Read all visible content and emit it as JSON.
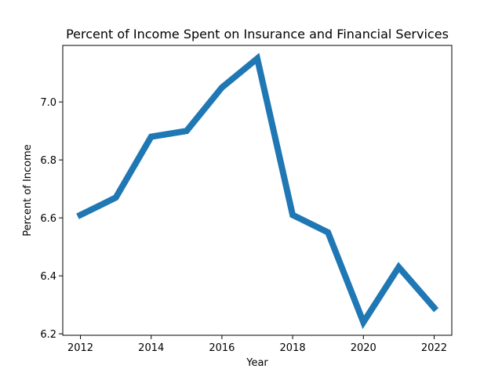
{
  "chart_data": {
    "type": "line",
    "title": "Percent of Income Spent on Insurance and Financial Services",
    "xlabel": "Year",
    "ylabel": "Percent of Income",
    "x": [
      2012,
      2013,
      2014,
      2015,
      2016,
      2017,
      2018,
      2019,
      2020,
      2021,
      2022
    ],
    "series": [
      {
        "values": [
          6.61,
          6.67,
          6.88,
          6.9,
          7.05,
          7.15,
          6.61,
          6.55,
          6.24,
          6.43,
          6.29
        ]
      }
    ],
    "xlim": [
      2011.5,
      2022.5
    ],
    "ylim": [
      6.195,
      7.195
    ],
    "xticks": [
      2012,
      2014,
      2016,
      2018,
      2020,
      2022
    ],
    "xtick_labels": [
      "2012",
      "2014",
      "2016",
      "2018",
      "2020",
      "2022"
    ],
    "yticks": [
      6.2,
      6.4,
      6.6,
      6.8,
      7.0
    ],
    "ytick_labels": [
      "6.2",
      "6.4",
      "6.6",
      "6.8",
      "7.0"
    ],
    "grid": false,
    "line_color": "#1f77b4"
  }
}
